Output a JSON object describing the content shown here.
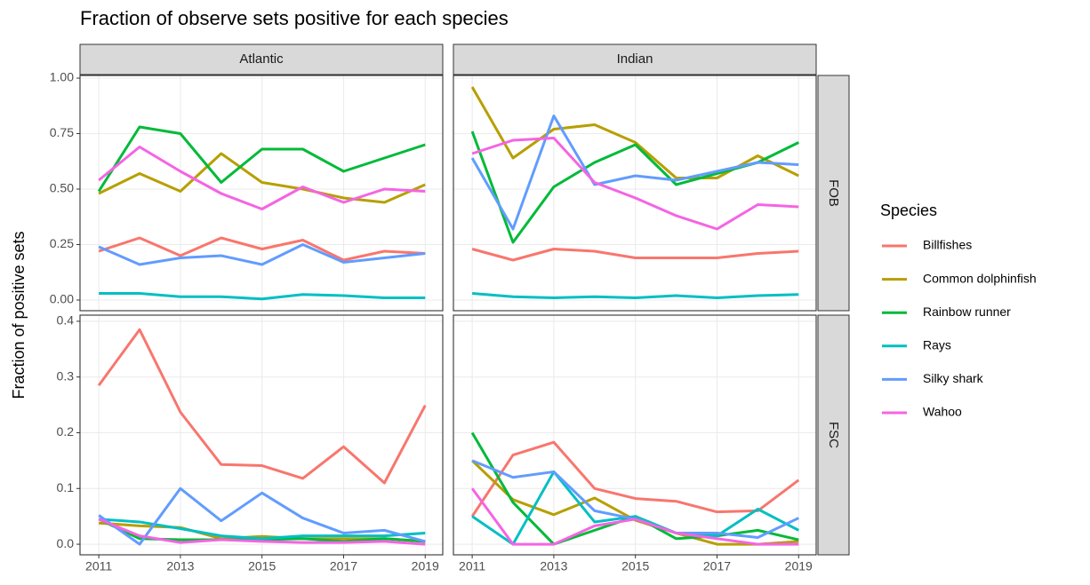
{
  "chart_data": {
    "type": "line",
    "title": "Fraction of observe sets positive for each species",
    "ylabel": "Fraction of positive sets",
    "legend_title": "Species",
    "x": [
      2011,
      2012,
      2013,
      2014,
      2015,
      2016,
      2017,
      2018,
      2019
    ],
    "xlim": [
      2010.54,
      2019.43
    ],
    "xticks": [
      2011,
      2013,
      2015,
      2017,
      2019
    ],
    "grid": true,
    "columns": [
      "Atlantic",
      "Indian"
    ],
    "rows": [
      {
        "label": "FOB",
        "ylim": [
          -0.048,
          1.012
        ],
        "yticks": [
          {
            "value": 0,
            "label": "0.00"
          },
          {
            "value": 0.25,
            "label": "0.25"
          },
          {
            "value": 0.5,
            "label": "0.50"
          },
          {
            "value": 0.75,
            "label": "0.75"
          },
          {
            "value": 1,
            "label": "1.00"
          }
        ]
      },
      {
        "label": "FSC",
        "ylim": [
          -0.019,
          0.411
        ],
        "yticks": [
          {
            "value": 0,
            "label": "0.0"
          },
          0.1,
          0.2,
          0.3,
          0.4
        ]
      }
    ],
    "series": [
      {
        "name": "Billfishes",
        "color": "#F8766D",
        "values": [
          [
            0.22,
            0.28,
            0.2,
            0.28,
            0.23,
            0.27,
            0.18,
            0.22,
            0.21
          ],
          [
            0.23,
            0.18,
            0.23,
            0.22,
            0.19,
            0.19,
            0.19,
            0.21,
            0.22
          ],
          [
            0.285,
            0.385,
            0.237,
            0.143,
            0.141,
            0.118,
            0.175,
            0.11,
            0.249
          ],
          [
            0.05,
            0.16,
            0.183,
            0.1,
            0.082,
            0.077,
            0.058,
            0.06,
            0.115
          ]
        ]
      },
      {
        "name": "Common dolphinfish",
        "color": "#B79F00",
        "values": [
          [
            0.48,
            0.57,
            0.49,
            0.66,
            0.53,
            0.5,
            0.46,
            0.44,
            0.52
          ],
          [
            0.96,
            0.64,
            0.77,
            0.79,
            0.71,
            0.55,
            0.55,
            0.65,
            0.56
          ],
          [
            0.038,
            0.033,
            0.03,
            0.01,
            0.014,
            0.01,
            0.01,
            0.01,
            0.005
          ],
          [
            0.15,
            0.08,
            0.053,
            0.083,
            0.043,
            0.02,
            0,
            0,
            0.005
          ]
        ]
      },
      {
        "name": "Rainbow runner",
        "color": "#00BA38",
        "values": [
          [
            0.49,
            0.78,
            0.75,
            0.53,
            0.68,
            0.68,
            0.58,
            0.64,
            0.7
          ],
          [
            0.76,
            0.26,
            0.51,
            0.62,
            0.7,
            0.52,
            0.57,
            0.62,
            0.71
          ],
          [
            0.045,
            0.01,
            0.008,
            0.008,
            0.008,
            0.01,
            0.005,
            0.01,
            0.005
          ],
          [
            0.2,
            0.075,
            0,
            0.025,
            0.05,
            0.01,
            0.015,
            0.025,
            0.008
          ]
        ]
      },
      {
        "name": "Rays",
        "color": "#00BFC4",
        "values": [
          [
            0.03,
            0.03,
            0.015,
            0.015,
            0.005,
            0.025,
            0.02,
            0.01,
            0.01
          ],
          [
            0.03,
            0.015,
            0.01,
            0.015,
            0.01,
            0.02,
            0.01,
            0.02,
            0.025
          ],
          [
            0.045,
            0.04,
            0.028,
            0.015,
            0.01,
            0.015,
            0.015,
            0.015,
            0.02
          ],
          [
            0.05,
            0,
            0.13,
            0.04,
            0.05,
            0.02,
            0.015,
            0.063,
            0.025
          ]
        ]
      },
      {
        "name": "Silky shark",
        "color": "#619CFF",
        "values": [
          [
            0.24,
            0.16,
            0.19,
            0.2,
            0.16,
            0.25,
            0.17,
            0.19,
            0.21
          ],
          [
            0.64,
            0.32,
            0.83,
            0.52,
            0.56,
            0.54,
            0.58,
            0.62,
            0.61
          ],
          [
            0.052,
            0,
            0.1,
            0.042,
            0.092,
            0.047,
            0.02,
            0.025,
            0.005
          ],
          [
            0.15,
            0.12,
            0.13,
            0.06,
            0.045,
            0.02,
            0.02,
            0.012,
            0.047
          ]
        ]
      },
      {
        "name": "Wahoo",
        "color": "#F564E3",
        "values": [
          [
            0.54,
            0.69,
            0.58,
            0.48,
            0.41,
            0.51,
            0.44,
            0.5,
            0.49
          ],
          [
            0.66,
            0.72,
            0.73,
            0.53,
            0.46,
            0.38,
            0.32,
            0.43,
            0.42
          ],
          [
            0.045,
            0.015,
            0.003,
            0.008,
            0.005,
            0.003,
            0.003,
            0.005,
            0
          ],
          [
            0.1,
            0,
            0,
            0.033,
            0.045,
            0.02,
            0.01,
            0,
            0
          ]
        ]
      }
    ]
  }
}
